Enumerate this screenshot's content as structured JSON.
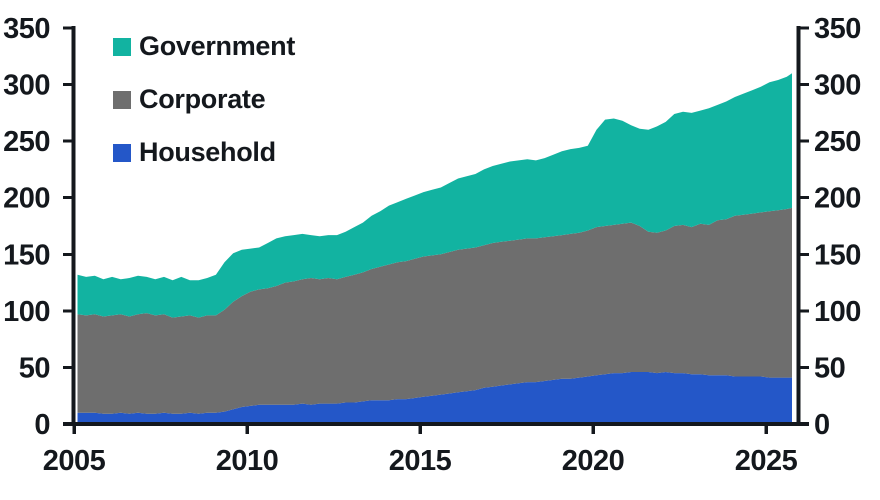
{
  "chart_data": {
    "type": "area",
    "stacked": true,
    "title": "",
    "xlabel": "",
    "ylabel": "",
    "grid": false,
    "legend_position": "inside-top-left",
    "legend": [
      "Government",
      "Corporate",
      "Household"
    ],
    "xlim": [
      2005,
      2025.93
    ],
    "ylim": [
      0,
      350
    ],
    "x_ticks": [
      2005,
      2010,
      2015,
      2020,
      2025
    ],
    "y_ticks": [
      0,
      50,
      100,
      150,
      200,
      250,
      300,
      350
    ],
    "y_tick_labels_left": [
      "0",
      "50",
      "100",
      "150",
      "200",
      "250",
      "300",
      "350"
    ],
    "y_tick_labels_right": [
      "0",
      "50",
      "100",
      "150",
      "200",
      "250",
      "300",
      "350"
    ],
    "x": [
      2005.1,
      2005.35,
      2005.6,
      2005.85,
      2006.1,
      2006.35,
      2006.6,
      2006.85,
      2007.1,
      2007.35,
      2007.6,
      2007.85,
      2008.1,
      2008.35,
      2008.6,
      2008.85,
      2009.1,
      2009.35,
      2009.6,
      2009.85,
      2010.1,
      2010.35,
      2010.6,
      2010.85,
      2011.1,
      2011.35,
      2011.6,
      2011.85,
      2012.1,
      2012.35,
      2012.6,
      2012.85,
      2013.1,
      2013.35,
      2013.6,
      2013.85,
      2014.1,
      2014.35,
      2014.6,
      2014.85,
      2015.1,
      2015.35,
      2015.6,
      2015.85,
      2016.1,
      2016.35,
      2016.6,
      2016.85,
      2017.1,
      2017.35,
      2017.6,
      2017.85,
      2018.1,
      2018.35,
      2018.6,
      2018.85,
      2019.1,
      2019.35,
      2019.6,
      2019.85,
      2020.1,
      2020.35,
      2020.6,
      2020.85,
      2021.1,
      2021.35,
      2021.6,
      2021.85,
      2022.1,
      2022.35,
      2022.6,
      2022.85,
      2023.1,
      2023.35,
      2023.6,
      2023.85,
      2024.1,
      2024.35,
      2024.6,
      2024.85,
      2025.1,
      2025.35,
      2025.6,
      2025.75
    ],
    "series": [
      {
        "name": "Household",
        "color": "#2457C8",
        "values": [
          10,
          10,
          10,
          9,
          9,
          10,
          9,
          10,
          9,
          9,
          10,
          9,
          9,
          10,
          9,
          10,
          10,
          11,
          13,
          15,
          16,
          17,
          17,
          17,
          17,
          17,
          18,
          17,
          18,
          18,
          18,
          19,
          19,
          20,
          21,
          21,
          21,
          22,
          22,
          23,
          24,
          25,
          26,
          27,
          28,
          29,
          30,
          32,
          33,
          34,
          35,
          36,
          37,
          37,
          38,
          39,
          40,
          40,
          41,
          42,
          43,
          44,
          45,
          45,
          46,
          46,
          46,
          45,
          46,
          45,
          45,
          44,
          44,
          43,
          43,
          43,
          42,
          42,
          42,
          42,
          41,
          41,
          41,
          41
        ]
      },
      {
        "name": "Corporate",
        "color": "#6E6E6E",
        "values": [
          87,
          86,
          87,
          86,
          87,
          87,
          86,
          87,
          89,
          87,
          87,
          85,
          86,
          86,
          85,
          86,
          86,
          90,
          95,
          98,
          101,
          102,
          103,
          105,
          108,
          109,
          110,
          112,
          110,
          111,
          110,
          111,
          113,
          114,
          116,
          118,
          120,
          121,
          122,
          123,
          124,
          124,
          124,
          125,
          126,
          126,
          126,
          126,
          127,
          127,
          127,
          127,
          127,
          127,
          127,
          127,
          127,
          128,
          128,
          129,
          131,
          131,
          131,
          132,
          132,
          129,
          124,
          124,
          125,
          130,
          131,
          130,
          133,
          133,
          137,
          138,
          142,
          143,
          144,
          145,
          147,
          148,
          149,
          150
        ]
      },
      {
        "name": "Government",
        "color": "#12B3A1",
        "values": [
          35,
          34,
          34,
          33,
          34,
          31,
          34,
          34,
          32,
          32,
          33,
          33,
          35,
          31,
          33,
          33,
          36,
          42,
          43,
          41,
          38,
          37,
          40,
          42,
          41,
          41,
          40,
          38,
          38,
          38,
          39,
          40,
          42,
          44,
          47,
          49,
          52,
          53,
          55,
          56,
          57,
          58,
          59,
          61,
          63,
          64,
          65,
          67,
          68,
          69,
          70,
          70,
          70,
          69,
          70,
          72,
          74,
          75,
          75,
          75,
          86,
          94,
          94,
          91,
          86,
          86,
          90,
          94,
          96,
          99,
          100,
          101,
          100,
          103,
          102,
          104,
          105,
          107,
          109,
          111,
          114,
          115,
          117,
          119
        ]
      }
    ]
  },
  "style": {
    "axis_color": "#14181D",
    "tick_label_color": "#14181D",
    "background": "#FFFFFF"
  }
}
